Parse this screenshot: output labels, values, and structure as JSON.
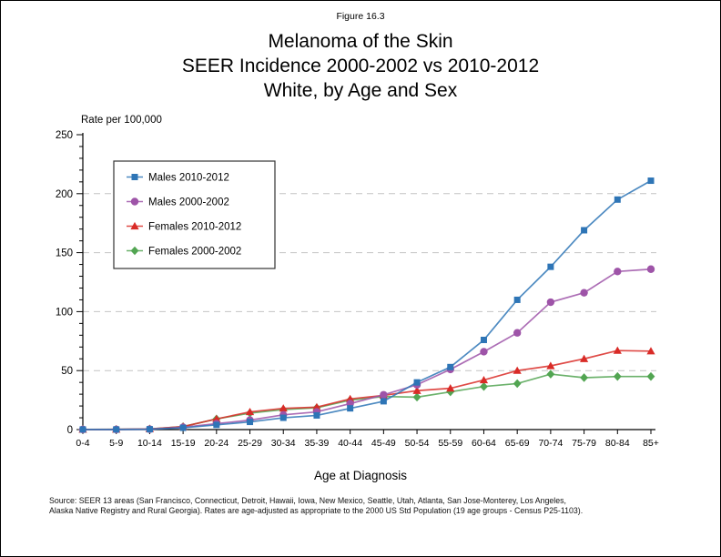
{
  "figure_label": "Figure 16.3",
  "title": {
    "line1": "Melanoma of the Skin",
    "line2": "SEER Incidence 2000-2002 vs 2010-2012",
    "line3": "White, by Age and Sex"
  },
  "axes": {
    "y_label": "Rate per 100,000",
    "x_label": "Age at Diagnosis"
  },
  "footer": {
    "line1": "Source: SEER 13 areas (San Francisco, Connecticut, Detroit, Hawaii, Iowa, New Mexico, Seattle, Utah, Atlanta, San Jose-Monterey, Los Angeles,",
    "line2": "Alaska Native Registry and Rural Georgia). Rates are age-adjusted as appropriate to the 2000 US Std Population (19 age groups - Census P25-1103)."
  },
  "chart_data": {
    "type": "line",
    "title": "Melanoma of the Skin, SEER Incidence 2000-2002 vs 2010-2012, White, by Age and Sex",
    "xlabel": "Age at Diagnosis",
    "ylabel": "Rate per 100,000",
    "ylim": [
      0,
      250
    ],
    "ytick_major_interval": 50,
    "ytick_minor_interval": 10,
    "ytick_labels": [
      "0",
      "50",
      "100",
      "150",
      "200",
      "250"
    ],
    "grid": "horizontal dashed at major ticks (50-200)",
    "legend_position": "upper-left",
    "categories": [
      "0-4",
      "5-9",
      "10-14",
      "15-19",
      "20-24",
      "25-29",
      "30-34",
      "35-39",
      "40-44",
      "45-49",
      "50-54",
      "55-59",
      "60-64",
      "65-69",
      "70-74",
      "75-79",
      "80-84",
      "85+"
    ],
    "series": [
      {
        "name": "Males 2010-2012",
        "marker": "square",
        "color": "#2E75B6",
        "values": [
          0.1,
          0.1,
          0.3,
          1.5,
          4,
          6.5,
          10,
          12,
          18,
          24,
          40,
          53,
          76,
          110,
          138,
          169,
          195,
          211
        ]
      },
      {
        "name": "Males 2000-2002",
        "marker": "circle",
        "color": "#9E54A8",
        "values": [
          0.1,
          0.1,
          0.3,
          2,
          5,
          8,
          12.5,
          15,
          22,
          29.5,
          38,
          51,
          66,
          82,
          108,
          116,
          134,
          136
        ]
      },
      {
        "name": "Females 2010-2012",
        "marker": "triangle",
        "color": "#D92B27",
        "values": [
          0.1,
          0.2,
          0.5,
          2.5,
          9,
          15,
          18,
          19,
          26,
          29,
          33,
          35,
          42,
          50,
          54,
          60,
          67,
          66.5
        ]
      },
      {
        "name": "Females 2000-2002",
        "marker": "diamond",
        "color": "#52A552",
        "values": [
          0.1,
          0.2,
          0.5,
          2.5,
          9,
          14,
          17,
          18.5,
          25,
          28,
          27.5,
          32,
          36.5,
          39,
          47,
          44,
          45,
          45
        ]
      }
    ]
  }
}
